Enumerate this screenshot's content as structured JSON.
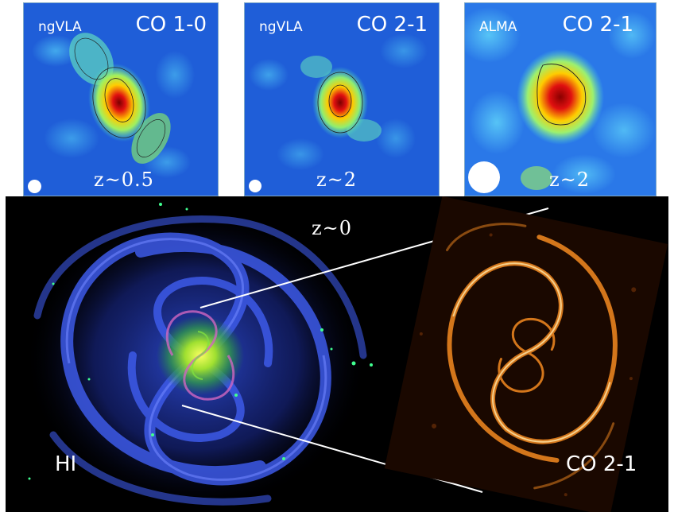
{
  "panels": [
    {
      "instrument": "ngVLA",
      "line": "CO 1-0",
      "redshift": "z~0.5"
    },
    {
      "instrument": "ngVLA",
      "line": "CO 2-1",
      "redshift": "z~2"
    },
    {
      "instrument": "ALMA",
      "line": "CO 2-1",
      "redshift": "z~2"
    }
  ],
  "bottom": {
    "redshift": "z~0",
    "left_label": "HI",
    "right_label": "CO 2-1"
  },
  "colors": {
    "map_background": "#1f5ed8",
    "peak": "#8b0000",
    "hi_gas": "#2a3fd0",
    "co_emission": "#e8821e"
  }
}
